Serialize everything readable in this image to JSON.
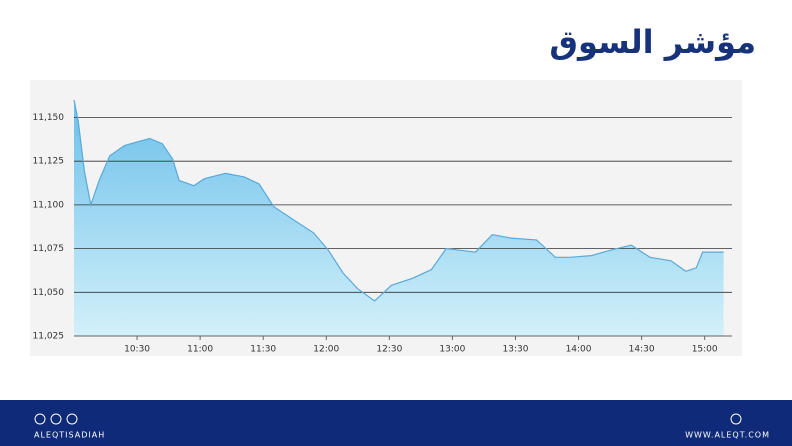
{
  "chart_data": {
    "type": "area",
    "title": "مؤشر السوق",
    "x": [
      "10:00",
      "10:02",
      "10:05",
      "10:08",
      "10:12",
      "10:17",
      "10:24",
      "10:30",
      "10:36",
      "10:42",
      "10:47",
      "10:50",
      "10:57",
      "11:02",
      "11:12",
      "11:21",
      "11:28",
      "11:35",
      "11:45",
      "11:54",
      "12:01",
      "12:08",
      "12:15",
      "12:23",
      "12:31",
      "12:41",
      "12:50",
      "12:57",
      "13:04",
      "13:11",
      "13:19",
      "13:28",
      "13:40",
      "13:49",
      "13:56",
      "14:06",
      "14:15",
      "14:25",
      "14:34",
      "14:44",
      "14:51",
      "14:56",
      "14:59",
      "15:09"
    ],
    "values": [
      11160,
      11148,
      11119,
      11100,
      11114,
      11128,
      11134,
      11136,
      11138,
      11135,
      11126,
      11114,
      11111,
      11115,
      11118,
      11116,
      11112,
      11099,
      11091,
      11084,
      11074,
      11061,
      11052,
      11045,
      11054,
      11058,
      11063,
      11075,
      11074,
      11073,
      11083,
      11081,
      11080,
      11070,
      11070,
      11071,
      11074,
      11077,
      11070,
      11068,
      11062,
      11064,
      11073,
      11073
    ],
    "color": "#5aa9d9",
    "xlim": [
      "10:00",
      "15:13"
    ],
    "xticks": [
      "10:30",
      "11:00",
      "11:30",
      "12:00",
      "12:30",
      "13:00",
      "13:30",
      "14:00",
      "14:30",
      "15:00"
    ],
    "ylim": [
      11025,
      11160
    ],
    "yticks": [
      {
        "value": 11025,
        "label": "11,025"
      },
      {
        "value": 11050,
        "label": "11,050"
      },
      {
        "value": 11075,
        "label": "11,075"
      },
      {
        "value": 11100,
        "label": "11,100"
      },
      {
        "value": 11125,
        "label": "11,125"
      },
      {
        "value": 11150,
        "label": "11,150"
      }
    ],
    "grid": true
  },
  "footer": {
    "left": "ALEQTISADIAH",
    "right": "WWW.ALEQT.COM"
  }
}
